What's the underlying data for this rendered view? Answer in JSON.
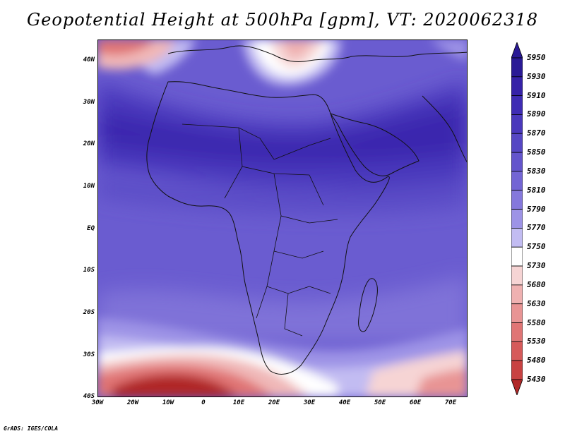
{
  "title": "Geopotential Height at 500hPa [gpm], VT: 2020062318",
  "credit": "GrADS: IGES/COLA",
  "lat_labels": [
    "40N",
    "30N",
    "20N",
    "10N",
    "EQ",
    "10S",
    "20S",
    "30S",
    "40S"
  ],
  "lon_labels": [
    "30W",
    "20W",
    "10W",
    "0",
    "10E",
    "20E",
    "30E",
    "40E",
    "50E",
    "60E",
    "70E"
  ],
  "colorbar": {
    "levels": [
      "5950",
      "5930",
      "5910",
      "5890",
      "5870",
      "5850",
      "5830",
      "5810",
      "5790",
      "5770",
      "5750",
      "5730",
      "5680",
      "5630",
      "5580",
      "5530",
      "5480",
      "5430"
    ],
    "colors": [
      "#2a1a96",
      "#3622a8",
      "#3f2cb4",
      "#4a38bc",
      "#5647c4",
      "#6455cc",
      "#7365d4",
      "#8578dc",
      "#9d93e6",
      "#c2bcf2",
      "#ffffff",
      "#f6d4d4",
      "#efb1b1",
      "#e89494",
      "#e07575",
      "#d65a5a",
      "#c84242",
      "#b02828"
    ]
  },
  "field_colors": {
    "high": "#3a26ae",
    "mid": "#5647c4",
    "tropics": "#6a5cd0",
    "light": "#9d93e6",
    "white": "#ffffff",
    "low1": "#f0b8b8",
    "low2": "#e07575",
    "low3": "#b02828",
    "coast": "#111111"
  }
}
